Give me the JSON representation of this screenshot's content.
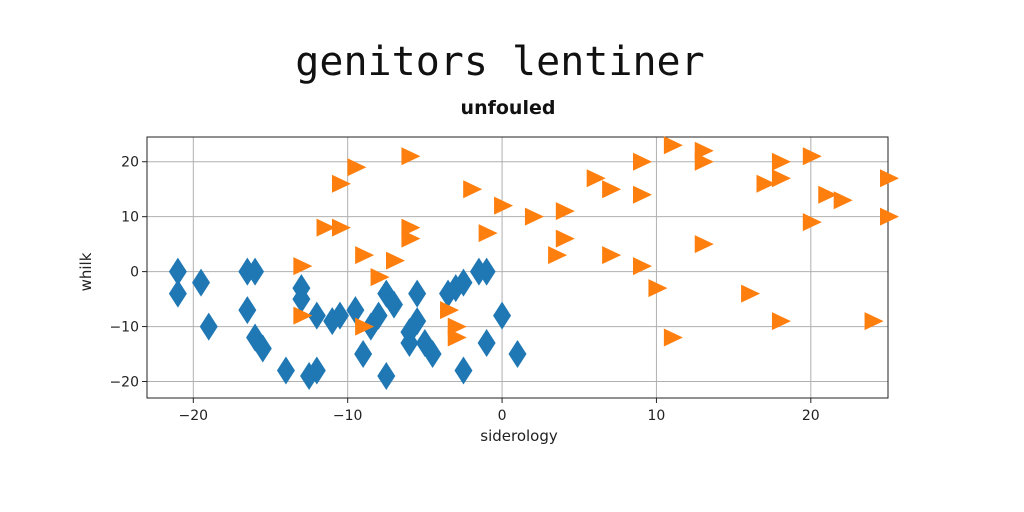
{
  "chart_data": {
    "type": "scatter",
    "title": "genitors lentiner",
    "subtitle": "unfouled",
    "xlabel": "siderology",
    "ylabel": "whilk",
    "xlim": [
      -23,
      25
    ],
    "ylim": [
      -23,
      24.5
    ],
    "xticks": [
      -20,
      -10,
      0,
      10,
      20
    ],
    "yticks": [
      -20,
      -10,
      0,
      10,
      20
    ],
    "xtick_labels": [
      "−20",
      "−10",
      "0",
      "10",
      "20"
    ],
    "ytick_labels": [
      "−20",
      "−10",
      "0",
      "10",
      "20"
    ],
    "grid": true,
    "legend": "none",
    "colors": {
      "series_a": "#1f77b4",
      "series_b": "#ff7f0e",
      "grid": "#b0b0b0"
    },
    "series": [
      {
        "marker": "diamond",
        "color": "#1f77b4",
        "points": [
          [
            -21,
            0
          ],
          [
            -21,
            -4
          ],
          [
            -19.5,
            -2
          ],
          [
            -19,
            -10
          ],
          [
            -16.5,
            0
          ],
          [
            -16,
            0
          ],
          [
            -16.5,
            -7
          ],
          [
            -16,
            -12
          ],
          [
            -15.5,
            -14
          ],
          [
            -14,
            -18
          ],
          [
            -13,
            -3
          ],
          [
            -13,
            -5
          ],
          [
            -12.5,
            -19
          ],
          [
            -12,
            -18
          ],
          [
            -12,
            -8
          ],
          [
            -11,
            -9
          ],
          [
            -10.5,
            -8
          ],
          [
            -9.5,
            -7
          ],
          [
            -9,
            -15
          ],
          [
            -8.5,
            -10
          ],
          [
            -8,
            -8
          ],
          [
            -7.5,
            -4
          ],
          [
            -7,
            -6
          ],
          [
            -7.5,
            -19
          ],
          [
            -6,
            -13
          ],
          [
            -6,
            -11
          ],
          [
            -5.5,
            -4
          ],
          [
            -5.5,
            -9
          ],
          [
            -5,
            -13
          ],
          [
            -4.5,
            -15
          ],
          [
            -3.5,
            -4
          ],
          [
            -3,
            -3
          ],
          [
            -2.5,
            -2
          ],
          [
            -2.5,
            -18
          ],
          [
            -1.5,
            0
          ],
          [
            -1,
            0
          ],
          [
            -1,
            -13
          ],
          [
            0,
            -8
          ],
          [
            1,
            -15
          ]
        ]
      },
      {
        "marker": "triangle-right",
        "color": "#ff7f0e",
        "points": [
          [
            -13,
            1
          ],
          [
            -13,
            -8
          ],
          [
            -11.5,
            8
          ],
          [
            -10.5,
            8
          ],
          [
            -10.5,
            16
          ],
          [
            -9.5,
            19
          ],
          [
            -9,
            3
          ],
          [
            -9,
            -10
          ],
          [
            -8,
            -1
          ],
          [
            -7,
            2
          ],
          [
            -6,
            21
          ],
          [
            -6,
            8
          ],
          [
            -6,
            6
          ],
          [
            -3.5,
            -7
          ],
          [
            -3,
            -10
          ],
          [
            -3,
            -12
          ],
          [
            -2,
            15
          ],
          [
            -1,
            7
          ],
          [
            0,
            12
          ],
          [
            2,
            10
          ],
          [
            3.5,
            3
          ],
          [
            4,
            11
          ],
          [
            4,
            6
          ],
          [
            6,
            17
          ],
          [
            7,
            15
          ],
          [
            7,
            3
          ],
          [
            9,
            20
          ],
          [
            9,
            14
          ],
          [
            9,
            1
          ],
          [
            10,
            -3
          ],
          [
            11,
            23
          ],
          [
            11,
            -12
          ],
          [
            13,
            22
          ],
          [
            13,
            20
          ],
          [
            13,
            5
          ],
          [
            16,
            -4
          ],
          [
            17,
            16
          ],
          [
            18,
            20
          ],
          [
            18,
            17
          ],
          [
            18,
            -9
          ],
          [
            20,
            21
          ],
          [
            20,
            9
          ],
          [
            21,
            14
          ],
          [
            22,
            13
          ],
          [
            24,
            -9
          ],
          [
            25,
            17
          ],
          [
            25,
            10
          ]
        ]
      }
    ]
  }
}
